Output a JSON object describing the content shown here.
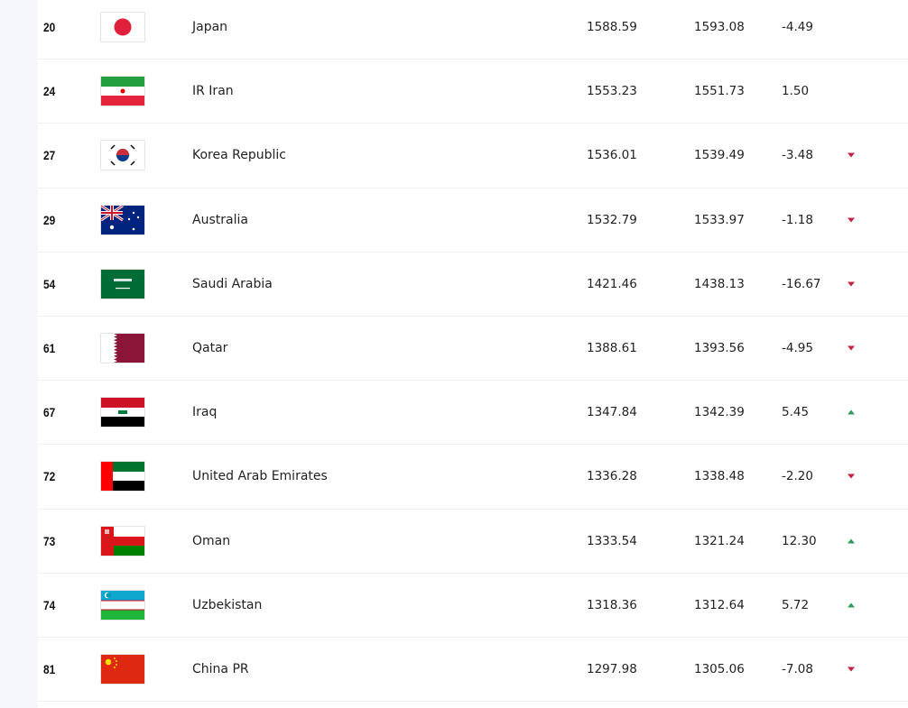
{
  "colors": {
    "down": "#c4203f",
    "up": "#2e9a5d",
    "sidebar": "#f6f7fb"
  },
  "rows": [
    {
      "rank": "20",
      "flag": "japan-flag",
      "name": "Japan",
      "points": "1588.59",
      "previous": "1593.08",
      "change": "-4.49",
      "trend": "none"
    },
    {
      "rank": "24",
      "flag": "iran-flag",
      "name": "IR Iran",
      "points": "1553.23",
      "previous": "1551.73",
      "change": "1.50",
      "trend": "none"
    },
    {
      "rank": "27",
      "flag": "korea-flag",
      "name": "Korea Republic",
      "points": "1536.01",
      "previous": "1539.49",
      "change": "-3.48",
      "trend": "down"
    },
    {
      "rank": "29",
      "flag": "australia-flag",
      "name": "Australia",
      "points": "1532.79",
      "previous": "1533.97",
      "change": "-1.18",
      "trend": "down"
    },
    {
      "rank": "54",
      "flag": "saudi-arabia-flag",
      "name": "Saudi Arabia",
      "points": "1421.46",
      "previous": "1438.13",
      "change": "-16.67",
      "trend": "down"
    },
    {
      "rank": "61",
      "flag": "qatar-flag",
      "name": "Qatar",
      "points": "1388.61",
      "previous": "1393.56",
      "change": "-4.95",
      "trend": "down"
    },
    {
      "rank": "67",
      "flag": "iraq-flag",
      "name": "Iraq",
      "points": "1347.84",
      "previous": "1342.39",
      "change": "5.45",
      "trend": "up"
    },
    {
      "rank": "72",
      "flag": "uae-flag",
      "name": "United Arab Emirates",
      "points": "1336.28",
      "previous": "1338.48",
      "change": "-2.20",
      "trend": "down"
    },
    {
      "rank": "73",
      "flag": "oman-flag",
      "name": "Oman",
      "points": "1333.54",
      "previous": "1321.24",
      "change": "12.30",
      "trend": "up"
    },
    {
      "rank": "74",
      "flag": "uzbekistan-flag",
      "name": "Uzbekistan",
      "points": "1318.36",
      "previous": "1312.64",
      "change": "5.72",
      "trend": "up"
    },
    {
      "rank": "81",
      "flag": "china-flag",
      "name": "China PR",
      "points": "1297.98",
      "previous": "1305.06",
      "change": "-7.08",
      "trend": "down"
    }
  ]
}
